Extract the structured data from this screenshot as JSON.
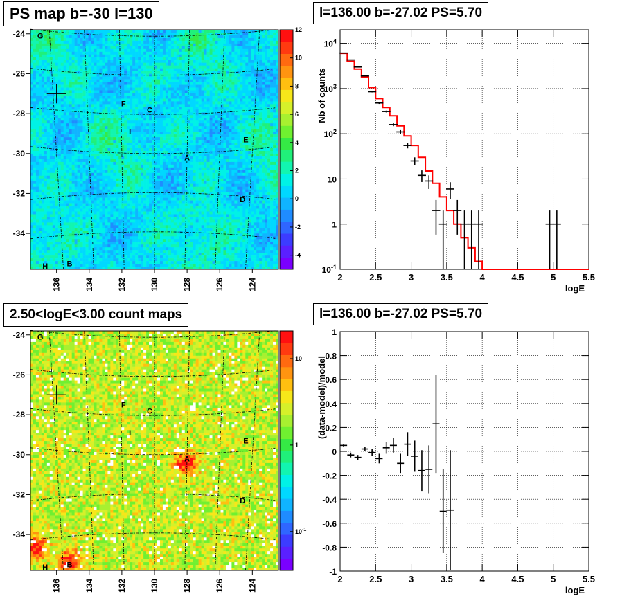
{
  "panels": {
    "ps_map_title": "PS map b=-30 l=130",
    "spectrum_title": "l=136.00 b=-27.02 PS=5.70",
    "count_map_title": "2.50<logE<3.00 count maps",
    "residual_title": "l=136.00 b=-27.02 PS=5.70"
  },
  "chart_data": [
    {
      "type": "heatmap",
      "name": "ps_map",
      "title": "PS map b=-30 l=130",
      "xlabel": "",
      "ylabel": "",
      "x_ticks": [
        136,
        134,
        132,
        130,
        128,
        126,
        124
      ],
      "y_ticks": [
        -24,
        -26,
        -28,
        -30,
        -32,
        -34
      ],
      "xlim": [
        137.6,
        122.4
      ],
      "ylim": [
        -35.8,
        -23.8
      ],
      "colorbar": {
        "min": -5,
        "max": 12,
        "ticks": [
          -4,
          -2,
          0,
          2,
          4,
          6,
          8,
          10,
          12
        ],
        "scale": "linear"
      },
      "markers": [
        {
          "label": "G",
          "l": 137.0,
          "b": -24.1
        },
        {
          "label": "F",
          "l": 131.9,
          "b": -27.5
        },
        {
          "label": "C",
          "l": 130.3,
          "b": -27.8
        },
        {
          "label": "I",
          "l": 131.5,
          "b": -28.9
        },
        {
          "label": "E",
          "l": 124.4,
          "b": -29.3
        },
        {
          "label": "A",
          "l": 128.0,
          "b": -30.2
        },
        {
          "label": "D",
          "l": 124.6,
          "b": -32.3
        },
        {
          "label": "B",
          "l": 135.2,
          "b": -35.5
        },
        {
          "label": "H",
          "l": 136.7,
          "b": -35.9
        }
      ],
      "source_cross": {
        "l": 136.0,
        "b": -27.0
      }
    },
    {
      "type": "line",
      "name": "spectrum",
      "title": "l=136.00 b=-27.02 PS=5.70",
      "xlabel": "logE",
      "ylabel": "Nb of counts",
      "xlim": [
        2,
        5.5
      ],
      "ylim": [
        0.1,
        20000
      ],
      "yscale": "log",
      "x_ticks": [
        "2",
        "2.5",
        "3",
        "3.5",
        "4",
        "4.5",
        "5",
        "5.5"
      ],
      "y_ticks": [
        "10^-1",
        "1",
        "10",
        "10^2",
        "10^3",
        "10^4"
      ],
      "grid": true,
      "series": [
        {
          "kind": "data_points",
          "color": "#000000",
          "x": [
            2.05,
            2.15,
            2.25,
            2.35,
            2.45,
            2.55,
            2.65,
            2.75,
            2.85,
            2.95,
            3.05,
            3.15,
            3.25,
            3.35,
            3.45,
            3.55,
            3.65,
            3.75,
            3.85,
            3.95,
            4.95,
            5.05
          ],
          "y": [
            6100,
            4300,
            3000,
            1900,
            850,
            480,
            310,
            160,
            110,
            55,
            25,
            12,
            9,
            2,
            1,
            6,
            2,
            1,
            1,
            1,
            1,
            1
          ]
        },
        {
          "kind": "model_step",
          "color": "#ff0000",
          "x_edges": [
            2.0,
            2.1,
            2.2,
            2.3,
            2.4,
            2.5,
            2.6,
            2.7,
            2.8,
            2.9,
            3.0,
            3.1,
            3.2,
            3.3,
            3.4,
            3.5,
            3.6,
            3.7,
            3.8,
            3.9,
            4.0,
            5.5
          ],
          "y": [
            6000,
            4000,
            2700,
            1800,
            1050,
            600,
            380,
            250,
            150,
            90,
            55,
            30,
            15,
            8,
            4,
            2,
            1,
            0.5,
            0.3,
            0.15,
            0.1
          ]
        }
      ]
    },
    {
      "type": "heatmap",
      "name": "count_map",
      "title": "2.50<logE<3.00 count maps",
      "xlabel": "",
      "ylabel": "",
      "x_ticks": [
        136,
        134,
        132,
        130,
        128,
        126,
        124
      ],
      "y_ticks": [
        -24,
        -26,
        -28,
        -30,
        -32,
        -34
      ],
      "xlim": [
        137.6,
        122.4
      ],
      "ylim": [
        -35.8,
        -23.8
      ],
      "colorbar": {
        "scale": "log",
        "ticks": [
          "10^-1",
          "1",
          "10"
        ]
      },
      "hotspots": [
        {
          "label": "A",
          "l": 128.1,
          "b": -30.4
        },
        {
          "label": "lower-left",
          "l": 137.4,
          "b": -34.6
        },
        {
          "label": "B",
          "l": 135.3,
          "b": -35.3
        }
      ],
      "markers": [
        {
          "label": "G",
          "l": 137.0,
          "b": -24.1
        },
        {
          "label": "F",
          "l": 131.9,
          "b": -27.5
        },
        {
          "label": "C",
          "l": 130.3,
          "b": -27.8
        },
        {
          "label": "I",
          "l": 131.5,
          "b": -28.9
        },
        {
          "label": "E",
          "l": 124.4,
          "b": -29.3
        },
        {
          "label": "A",
          "l": 128.0,
          "b": -30.2
        },
        {
          "label": "D",
          "l": 124.6,
          "b": -32.3
        },
        {
          "label": "B",
          "l": 135.2,
          "b": -35.5
        },
        {
          "label": "H",
          "l": 136.7,
          "b": -35.9
        }
      ],
      "source_cross": {
        "l": 136.0,
        "b": -27.0
      }
    },
    {
      "type": "scatter",
      "name": "residuals",
      "title": "l=136.00 b=-27.02 PS=5.70",
      "xlabel": "logE",
      "ylabel": "(data-model)/model",
      "xlim": [
        2,
        5.5
      ],
      "ylim": [
        -1,
        1
      ],
      "x_ticks": [
        "2",
        "2.5",
        "3",
        "3.5",
        "4",
        "4.5",
        "5",
        "5.5"
      ],
      "y_ticks": [
        "-1",
        "-0.8",
        "-0.6",
        "-0.4",
        "-0.2",
        "0",
        "0.2",
        "0.4",
        "0.6",
        "0.8",
        "1"
      ],
      "grid": true,
      "series": [
        {
          "kind": "residual_points",
          "color": "#000000",
          "x": [
            2.05,
            2.15,
            2.25,
            2.35,
            2.45,
            2.55,
            2.65,
            2.75,
            2.85,
            2.95,
            3.05,
            3.15,
            3.25,
            3.35,
            3.45,
            3.55
          ],
          "y": [
            0.05,
            -0.03,
            -0.05,
            0.02,
            -0.01,
            -0.06,
            0.03,
            0.05,
            -0.1,
            0.06,
            -0.04,
            -0.16,
            -0.15,
            0.23,
            -0.5,
            -0.49
          ],
          "err": [
            0.01,
            0.02,
            0.02,
            0.02,
            0.03,
            0.04,
            0.05,
            0.06,
            0.08,
            0.1,
            0.13,
            0.17,
            0.2,
            0.41,
            0.35,
            0.5
          ]
        }
      ]
    }
  ]
}
